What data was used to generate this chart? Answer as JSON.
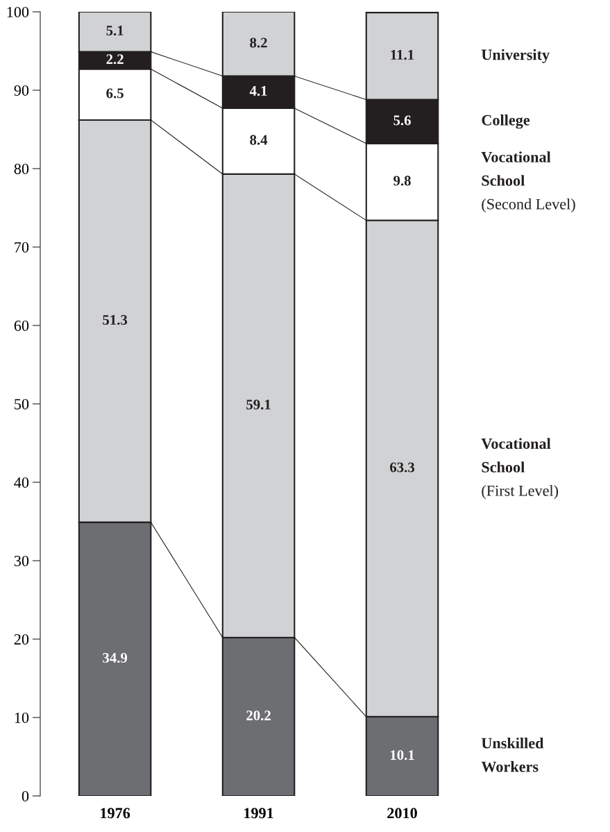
{
  "chart_data": {
    "type": "bar",
    "stacked": true,
    "categories": [
      "1976",
      "1991",
      "2010"
    ],
    "series": [
      {
        "name": "Unskilled\nWorkers",
        "color": "#6d6e71",
        "values": [
          34.9,
          20.2,
          10.1
        ]
      },
      {
        "name": "Vocational\nSchool\n(First Level)",
        "color": "#d1d2d4",
        "values": [
          51.3,
          59.1,
          63.3
        ]
      },
      {
        "name": "Vocational\nSchool\n(Second Level)",
        "color": "#ffffff",
        "values": [
          6.5,
          8.4,
          9.8
        ]
      },
      {
        "name": "College",
        "color": "#231f20",
        "values": [
          2.2,
          4.1,
          5.6
        ]
      },
      {
        "name": "University",
        "color": "#d1d2d4",
        "values": [
          5.1,
          8.2,
          11.1
        ]
      }
    ],
    "ylim": [
      0,
      100
    ],
    "yticks": [
      0,
      10,
      20,
      30,
      40,
      50,
      60,
      70,
      80,
      90,
      100
    ],
    "data_labels": true,
    "grid": false,
    "legend": false
  }
}
